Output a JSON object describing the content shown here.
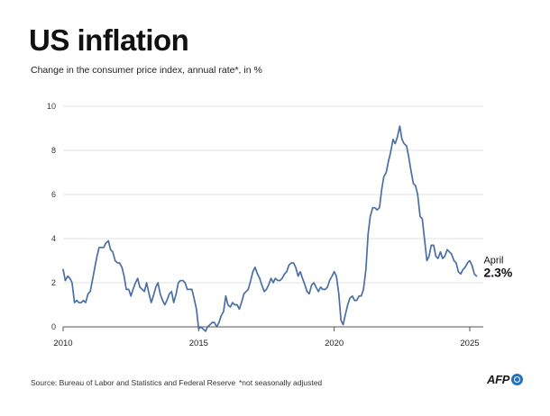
{
  "title": "US inflation",
  "subtitle": "Change in the consumer price index, annual rate*, in %",
  "source": "Source: Bureau of Labor and Statistics and Federal Reserve",
  "footnote": "*not seasonally adjusted",
  "logo_text": "AFP",
  "colors": {
    "line": "#4a6fa5",
    "grid": "#d8d8d8",
    "logo": "#1f73c4"
  },
  "chart_data": {
    "type": "line",
    "grid": true,
    "xlim": [
      2010,
      2025.5
    ],
    "ylim": [
      0,
      10
    ],
    "x_ticks": [
      2010,
      2015,
      2020,
      2025
    ],
    "x_tick_labels": [
      "2010",
      "2015",
      "2020",
      "2025"
    ],
    "y_ticks": [
      0,
      2,
      4,
      6,
      8,
      10
    ],
    "y_tick_labels": [
      "0",
      "2",
      "4",
      "6",
      "8",
      "10"
    ],
    "annotation": {
      "label": "April",
      "value_label": "2.3%",
      "x": 2025.25,
      "y": 2.3
    },
    "series": [
      {
        "values": [
          [
            2010.0,
            2.6
          ],
          [
            2010.08,
            2.1
          ],
          [
            2010.17,
            2.3
          ],
          [
            2010.25,
            2.2
          ],
          [
            2010.33,
            2.0
          ],
          [
            2010.42,
            1.1
          ],
          [
            2010.5,
            1.2
          ],
          [
            2010.58,
            1.1
          ],
          [
            2010.67,
            1.1
          ],
          [
            2010.75,
            1.2
          ],
          [
            2010.83,
            1.1
          ],
          [
            2010.92,
            1.5
          ],
          [
            2011.0,
            1.6
          ],
          [
            2011.08,
            2.1
          ],
          [
            2011.17,
            2.7
          ],
          [
            2011.25,
            3.2
          ],
          [
            2011.33,
            3.6
          ],
          [
            2011.42,
            3.6
          ],
          [
            2011.5,
            3.6
          ],
          [
            2011.58,
            3.8
          ],
          [
            2011.67,
            3.9
          ],
          [
            2011.75,
            3.5
          ],
          [
            2011.83,
            3.4
          ],
          [
            2011.92,
            3.0
          ],
          [
            2012.0,
            2.9
          ],
          [
            2012.08,
            2.9
          ],
          [
            2012.17,
            2.7
          ],
          [
            2012.25,
            2.3
          ],
          [
            2012.33,
            1.7
          ],
          [
            2012.42,
            1.7
          ],
          [
            2012.5,
            1.4
          ],
          [
            2012.58,
            1.7
          ],
          [
            2012.67,
            2.0
          ],
          [
            2012.75,
            2.2
          ],
          [
            2012.83,
            1.8
          ],
          [
            2012.92,
            1.7
          ],
          [
            2013.0,
            1.6
          ],
          [
            2013.08,
            2.0
          ],
          [
            2013.17,
            1.5
          ],
          [
            2013.25,
            1.1
          ],
          [
            2013.33,
            1.4
          ],
          [
            2013.42,
            1.8
          ],
          [
            2013.5,
            2.0
          ],
          [
            2013.58,
            1.5
          ],
          [
            2013.67,
            1.2
          ],
          [
            2013.75,
            1.0
          ],
          [
            2013.83,
            1.2
          ],
          [
            2013.92,
            1.5
          ],
          [
            2014.0,
            1.6
          ],
          [
            2014.08,
            1.1
          ],
          [
            2014.17,
            1.5
          ],
          [
            2014.25,
            2.0
          ],
          [
            2014.33,
            2.1
          ],
          [
            2014.42,
            2.1
          ],
          [
            2014.5,
            2.0
          ],
          [
            2014.58,
            1.7
          ],
          [
            2014.67,
            1.7
          ],
          [
            2014.75,
            1.7
          ],
          [
            2014.83,
            1.3
          ],
          [
            2014.92,
            0.8
          ],
          [
            2015.0,
            -0.1
          ],
          [
            2015.08,
            0.0
          ],
          [
            2015.17,
            -0.1
          ],
          [
            2015.25,
            -0.2
          ],
          [
            2015.33,
            0.0
          ],
          [
            2015.42,
            0.1
          ],
          [
            2015.5,
            0.2
          ],
          [
            2015.58,
            0.2
          ],
          [
            2015.67,
            0.0
          ],
          [
            2015.75,
            0.2
          ],
          [
            2015.83,
            0.5
          ],
          [
            2015.92,
            0.7
          ],
          [
            2016.0,
            1.4
          ],
          [
            2016.08,
            1.0
          ],
          [
            2016.17,
            0.9
          ],
          [
            2016.25,
            1.1
          ],
          [
            2016.33,
            1.0
          ],
          [
            2016.42,
            1.0
          ],
          [
            2016.5,
            0.8
          ],
          [
            2016.58,
            1.1
          ],
          [
            2016.67,
            1.5
          ],
          [
            2016.75,
            1.6
          ],
          [
            2016.83,
            1.7
          ],
          [
            2016.92,
            2.1
          ],
          [
            2017.0,
            2.5
          ],
          [
            2017.08,
            2.7
          ],
          [
            2017.17,
            2.4
          ],
          [
            2017.25,
            2.2
          ],
          [
            2017.33,
            1.9
          ],
          [
            2017.42,
            1.6
          ],
          [
            2017.5,
            1.7
          ],
          [
            2017.58,
            1.9
          ],
          [
            2017.67,
            2.2
          ],
          [
            2017.75,
            2.0
          ],
          [
            2017.83,
            2.2
          ],
          [
            2017.92,
            2.1
          ],
          [
            2018.0,
            2.1
          ],
          [
            2018.08,
            2.2
          ],
          [
            2018.17,
            2.4
          ],
          [
            2018.25,
            2.5
          ],
          [
            2018.33,
            2.8
          ],
          [
            2018.42,
            2.9
          ],
          [
            2018.5,
            2.9
          ],
          [
            2018.58,
            2.7
          ],
          [
            2018.67,
            2.3
          ],
          [
            2018.75,
            2.5
          ],
          [
            2018.83,
            2.2
          ],
          [
            2018.92,
            1.9
          ],
          [
            2019.0,
            1.6
          ],
          [
            2019.08,
            1.5
          ],
          [
            2019.17,
            1.9
          ],
          [
            2019.25,
            2.0
          ],
          [
            2019.33,
            1.8
          ],
          [
            2019.42,
            1.6
          ],
          [
            2019.5,
            1.8
          ],
          [
            2019.58,
            1.7
          ],
          [
            2019.67,
            1.7
          ],
          [
            2019.75,
            1.8
          ],
          [
            2019.83,
            2.1
          ],
          [
            2019.92,
            2.3
          ],
          [
            2020.0,
            2.5
          ],
          [
            2020.08,
            2.3
          ],
          [
            2020.17,
            1.5
          ],
          [
            2020.25,
            0.3
          ],
          [
            2020.33,
            0.1
          ],
          [
            2020.42,
            0.6
          ],
          [
            2020.5,
            1.0
          ],
          [
            2020.58,
            1.3
          ],
          [
            2020.67,
            1.4
          ],
          [
            2020.75,
            1.2
          ],
          [
            2020.83,
            1.2
          ],
          [
            2020.92,
            1.4
          ],
          [
            2021.0,
            1.4
          ],
          [
            2021.08,
            1.7
          ],
          [
            2021.17,
            2.6
          ],
          [
            2021.25,
            4.2
          ],
          [
            2021.33,
            5.0
          ],
          [
            2021.42,
            5.4
          ],
          [
            2021.5,
            5.4
          ],
          [
            2021.58,
            5.3
          ],
          [
            2021.67,
            5.4
          ],
          [
            2021.75,
            6.2
          ],
          [
            2021.83,
            6.8
          ],
          [
            2021.92,
            7.0
          ],
          [
            2022.0,
            7.5
          ],
          [
            2022.08,
            7.9
          ],
          [
            2022.17,
            8.5
          ],
          [
            2022.25,
            8.3
          ],
          [
            2022.33,
            8.6
          ],
          [
            2022.42,
            9.1
          ],
          [
            2022.5,
            8.5
          ],
          [
            2022.58,
            8.3
          ],
          [
            2022.67,
            8.2
          ],
          [
            2022.75,
            7.7
          ],
          [
            2022.83,
            7.1
          ],
          [
            2022.92,
            6.5
          ],
          [
            2023.0,
            6.4
          ],
          [
            2023.08,
            6.0
          ],
          [
            2023.17,
            5.0
          ],
          [
            2023.25,
            4.9
          ],
          [
            2023.33,
            4.0
          ],
          [
            2023.42,
            3.0
          ],
          [
            2023.5,
            3.2
          ],
          [
            2023.58,
            3.7
          ],
          [
            2023.67,
            3.7
          ],
          [
            2023.75,
            3.2
          ],
          [
            2023.83,
            3.1
          ],
          [
            2023.92,
            3.4
          ],
          [
            2024.0,
            3.1
          ],
          [
            2024.08,
            3.2
          ],
          [
            2024.17,
            3.5
          ],
          [
            2024.25,
            3.4
          ],
          [
            2024.33,
            3.3
          ],
          [
            2024.42,
            3.0
          ],
          [
            2024.5,
            2.9
          ],
          [
            2024.58,
            2.5
          ],
          [
            2024.67,
            2.4
          ],
          [
            2024.75,
            2.6
          ],
          [
            2024.83,
            2.7
          ],
          [
            2024.92,
            2.9
          ],
          [
            2025.0,
            3.0
          ],
          [
            2025.08,
            2.8
          ],
          [
            2025.17,
            2.4
          ],
          [
            2025.25,
            2.3
          ]
        ]
      }
    ]
  }
}
